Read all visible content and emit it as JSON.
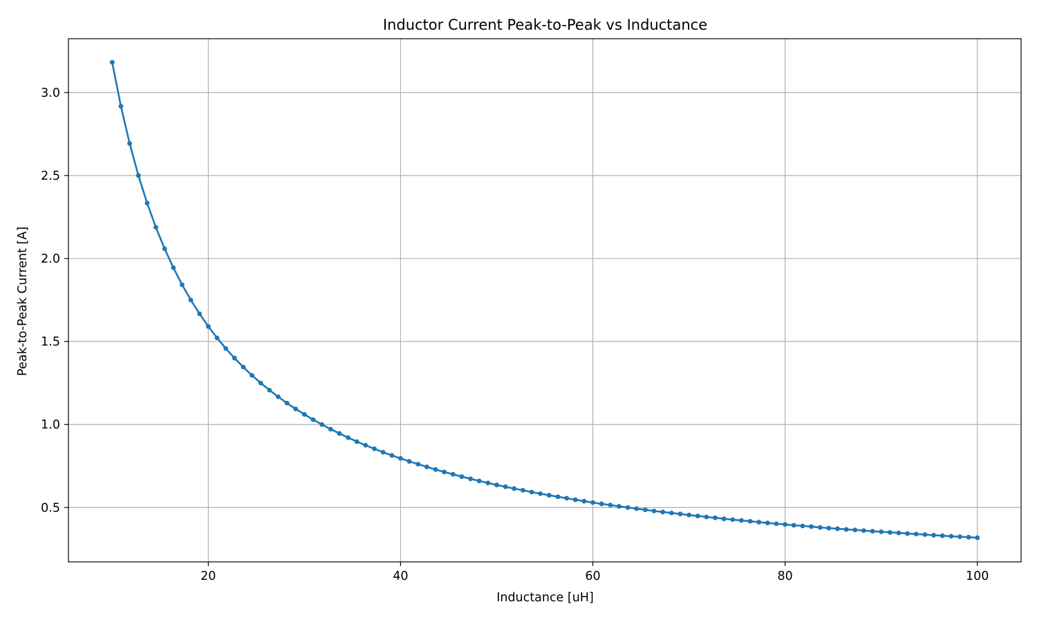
{
  "chart_data": {
    "type": "line",
    "title": "Inductor Current Peak-to-Peak vs Inductance",
    "xlabel": "Inductance [uH]",
    "ylabel": "Peak-to-Peak Current [A]",
    "xlim": [
      5.45,
      104.55
    ],
    "ylim": [
      0.1725,
      3.3242
    ],
    "xticks": [
      20,
      40,
      60,
      80,
      100
    ],
    "xtick_labels": [
      "20",
      "40",
      "60",
      "80",
      "100"
    ],
    "yticks": [
      0.5,
      1.0,
      1.5,
      2.0,
      2.5,
      3.0
    ],
    "ytick_labels": [
      "0.5",
      "1.0",
      "1.5",
      "2.0",
      "2.5",
      "3.0"
    ],
    "grid": true,
    "legend": "none",
    "series": [
      {
        "color": "#1f77b4",
        "marker": "circle",
        "x_start": 10,
        "x_end": 100,
        "x_step": 0.9091,
        "formula": "y = 31.82 / x",
        "x": [
          10.0,
          10.909,
          11.818,
          12.727,
          13.636,
          14.545,
          15.455,
          16.364,
          17.273,
          18.182,
          19.091,
          20.0,
          20.909,
          21.818,
          22.727,
          23.636,
          24.545,
          25.455,
          26.364,
          27.273,
          28.182,
          29.091,
          30.0,
          30.909,
          31.818,
          32.727,
          33.636,
          34.545,
          35.455,
          36.364,
          37.273,
          38.182,
          39.091,
          40.0,
          40.909,
          41.818,
          42.727,
          43.636,
          44.545,
          45.455,
          46.364,
          47.273,
          48.182,
          49.091,
          50.0,
          50.909,
          51.818,
          52.727,
          53.636,
          54.545,
          55.455,
          56.364,
          57.273,
          58.182,
          59.091,
          60.0,
          60.909,
          61.818,
          62.727,
          63.636,
          64.545,
          65.455,
          66.364,
          67.273,
          68.182,
          69.091,
          70.0,
          70.909,
          71.818,
          72.727,
          73.636,
          74.545,
          75.455,
          76.364,
          77.273,
          78.182,
          79.091,
          80.0,
          80.909,
          81.818,
          82.727,
          83.636,
          84.545,
          85.455,
          86.364,
          87.273,
          88.182,
          89.091,
          90.0,
          90.909,
          91.818,
          92.727,
          93.636,
          94.545,
          95.455,
          96.364,
          97.273,
          98.182,
          99.091,
          100.0
        ],
        "y": [
          3.182,
          2.917,
          2.693,
          2.5,
          2.334,
          2.188,
          2.059,
          1.945,
          1.842,
          1.75,
          1.667,
          1.591,
          1.522,
          1.458,
          1.4,
          1.346,
          1.296,
          1.25,
          1.207,
          1.167,
          1.129,
          1.094,
          1.061,
          1.029,
          1.0,
          0.972,
          0.946,
          0.921,
          0.897,
          0.875,
          0.854,
          0.833,
          0.814,
          0.796,
          0.778,
          0.761,
          0.745,
          0.729,
          0.714,
          0.7,
          0.686,
          0.673,
          0.66,
          0.648,
          0.636,
          0.625,
          0.614,
          0.604,
          0.593,
          0.583,
          0.574,
          0.565,
          0.556,
          0.547,
          0.538,
          0.53,
          0.522,
          0.515,
          0.507,
          0.5,
          0.493,
          0.486,
          0.479,
          0.473,
          0.467,
          0.461,
          0.455,
          0.449,
          0.443,
          0.438,
          0.432,
          0.427,
          0.422,
          0.417,
          0.412,
          0.407,
          0.402,
          0.398,
          0.393,
          0.389,
          0.385,
          0.38,
          0.376,
          0.372,
          0.368,
          0.365,
          0.361,
          0.357,
          0.354,
          0.35,
          0.347,
          0.343,
          0.34,
          0.337,
          0.333,
          0.33,
          0.327,
          0.324,
          0.321,
          0.318
        ]
      }
    ]
  }
}
